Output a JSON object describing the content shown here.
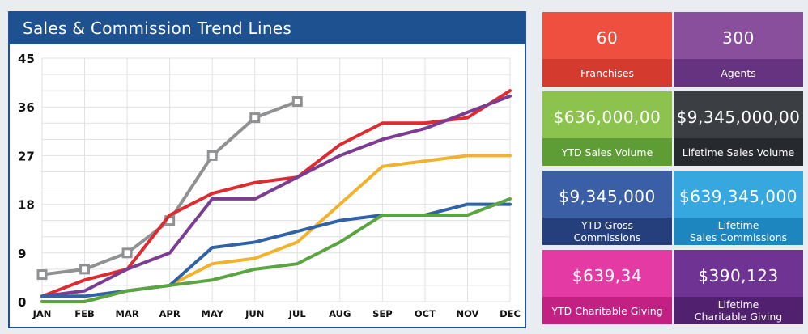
{
  "chart": {
    "title": "Sales & Commission Trend Lines"
  },
  "chart_data": {
    "type": "line",
    "categories": [
      "JAN",
      "FEB",
      "MAR",
      "APR",
      "MAY",
      "JUN",
      "JUL",
      "AUG",
      "SEP",
      "OCT",
      "NOV",
      "DEC"
    ],
    "ylim": [
      0,
      45
    ],
    "yticks": [
      0,
      9,
      18,
      27,
      36,
      45
    ],
    "grid": true,
    "series": [
      {
        "color": "#8f9193",
        "marker": "square",
        "values": [
          5,
          6,
          9,
          15,
          27,
          34,
          37,
          null,
          null,
          null,
          null,
          null
        ]
      },
      {
        "color": "#dc2b31",
        "values": [
          1,
          4,
          6,
          16,
          20,
          22,
          23,
          29,
          33,
          33,
          34,
          39
        ]
      },
      {
        "color": "#7c3d91",
        "values": [
          1,
          2,
          6,
          9,
          19,
          19,
          23,
          27,
          30,
          32,
          35,
          38
        ]
      },
      {
        "color": "#f1b22f",
        "values": [
          0,
          0,
          2,
          3,
          7,
          8,
          11,
          18,
          25,
          26,
          27,
          27
        ]
      },
      {
        "color": "#2f62a6",
        "values": [
          1,
          1,
          2,
          3,
          10,
          11,
          13,
          15,
          16,
          16,
          18,
          18
        ]
      },
      {
        "color": "#5aa541",
        "values": [
          0,
          0,
          2,
          3,
          4,
          6,
          7,
          11,
          16,
          16,
          16,
          19
        ]
      }
    ]
  },
  "tiles": [
    {
      "value": "60",
      "label": "Franchises",
      "top_color": "#ef4f3f",
      "bottom_color": "#d43a2e"
    },
    {
      "value": "300",
      "label": "Agents",
      "top_color": "#8a4f9c",
      "bottom_color": "#663380"
    },
    {
      "value": "$636,000,00",
      "label": "YTD Sales Volume",
      "top_color": "#8cc34f",
      "bottom_color": "#5e9c35"
    },
    {
      "value": "$9,345,000,00",
      "label": "Lifetime Sales Volume",
      "top_color": "#3b3f44",
      "bottom_color": "#26292e"
    },
    {
      "value": "$9,345,000",
      "label": "YTD Gross\nCommissions",
      "top_color": "#3a5fa6",
      "bottom_color": "#243f7c"
    },
    {
      "value": "$639,345,000",
      "label": "Lifetime\nSales Commissions",
      "top_color": "#37a8df",
      "bottom_color": "#1d86bf"
    },
    {
      "value": "$639,34",
      "label": "YTD Charitable Giving",
      "top_color": "#e33aa3",
      "bottom_color": "#c22183"
    },
    {
      "value": "$390,123",
      "label": "Lifetime\nCharitable Giving",
      "top_color": "#6f3394",
      "bottom_color": "#51206f"
    }
  ]
}
